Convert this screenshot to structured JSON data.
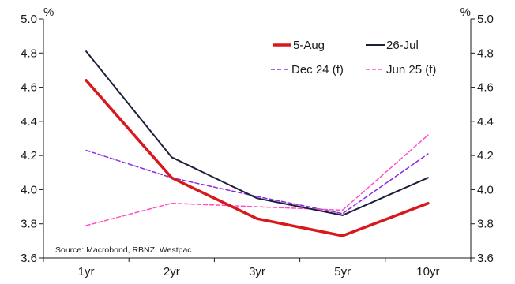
{
  "chart_data": {
    "type": "line",
    "categories": [
      "1yr",
      "2yr",
      "3yr",
      "5yr",
      "10yr"
    ],
    "ylim": [
      3.6,
      5.0
    ],
    "yticks": [
      3.6,
      3.8,
      4.0,
      4.2,
      4.4,
      4.6,
      4.8,
      5.0
    ],
    "ytick_labels": [
      "3.6",
      "3.8",
      "4.0",
      "4.2",
      "4.4",
      "4.6",
      "4.8",
      "5.0"
    ],
    "ylabel_left": "%",
    "ylabel_right": "%",
    "source": "Source: Macrobond, RBNZ, Westpac",
    "legend_position": "top-right",
    "grid": false,
    "series": [
      {
        "name": "5-Aug",
        "values": [
          4.64,
          4.07,
          3.83,
          3.73,
          3.92
        ],
        "color": "#d7191c",
        "style": "solid",
        "width": "thick"
      },
      {
        "name": "26-Jul",
        "values": [
          4.81,
          4.19,
          3.95,
          3.85,
          4.07
        ],
        "color": "#1b1f3b",
        "style": "solid",
        "width": "normal"
      },
      {
        "name": "Dec 24 (f)",
        "values": [
          4.23,
          4.07,
          3.96,
          3.86,
          4.21
        ],
        "color": "#8a2be2",
        "style": "dashed",
        "width": "normal"
      },
      {
        "name": "Jun 25 (f)",
        "values": [
          3.79,
          3.92,
          3.9,
          3.88,
          4.32
        ],
        "color": "#ff4fc1",
        "style": "dashed",
        "width": "normal"
      }
    ]
  }
}
